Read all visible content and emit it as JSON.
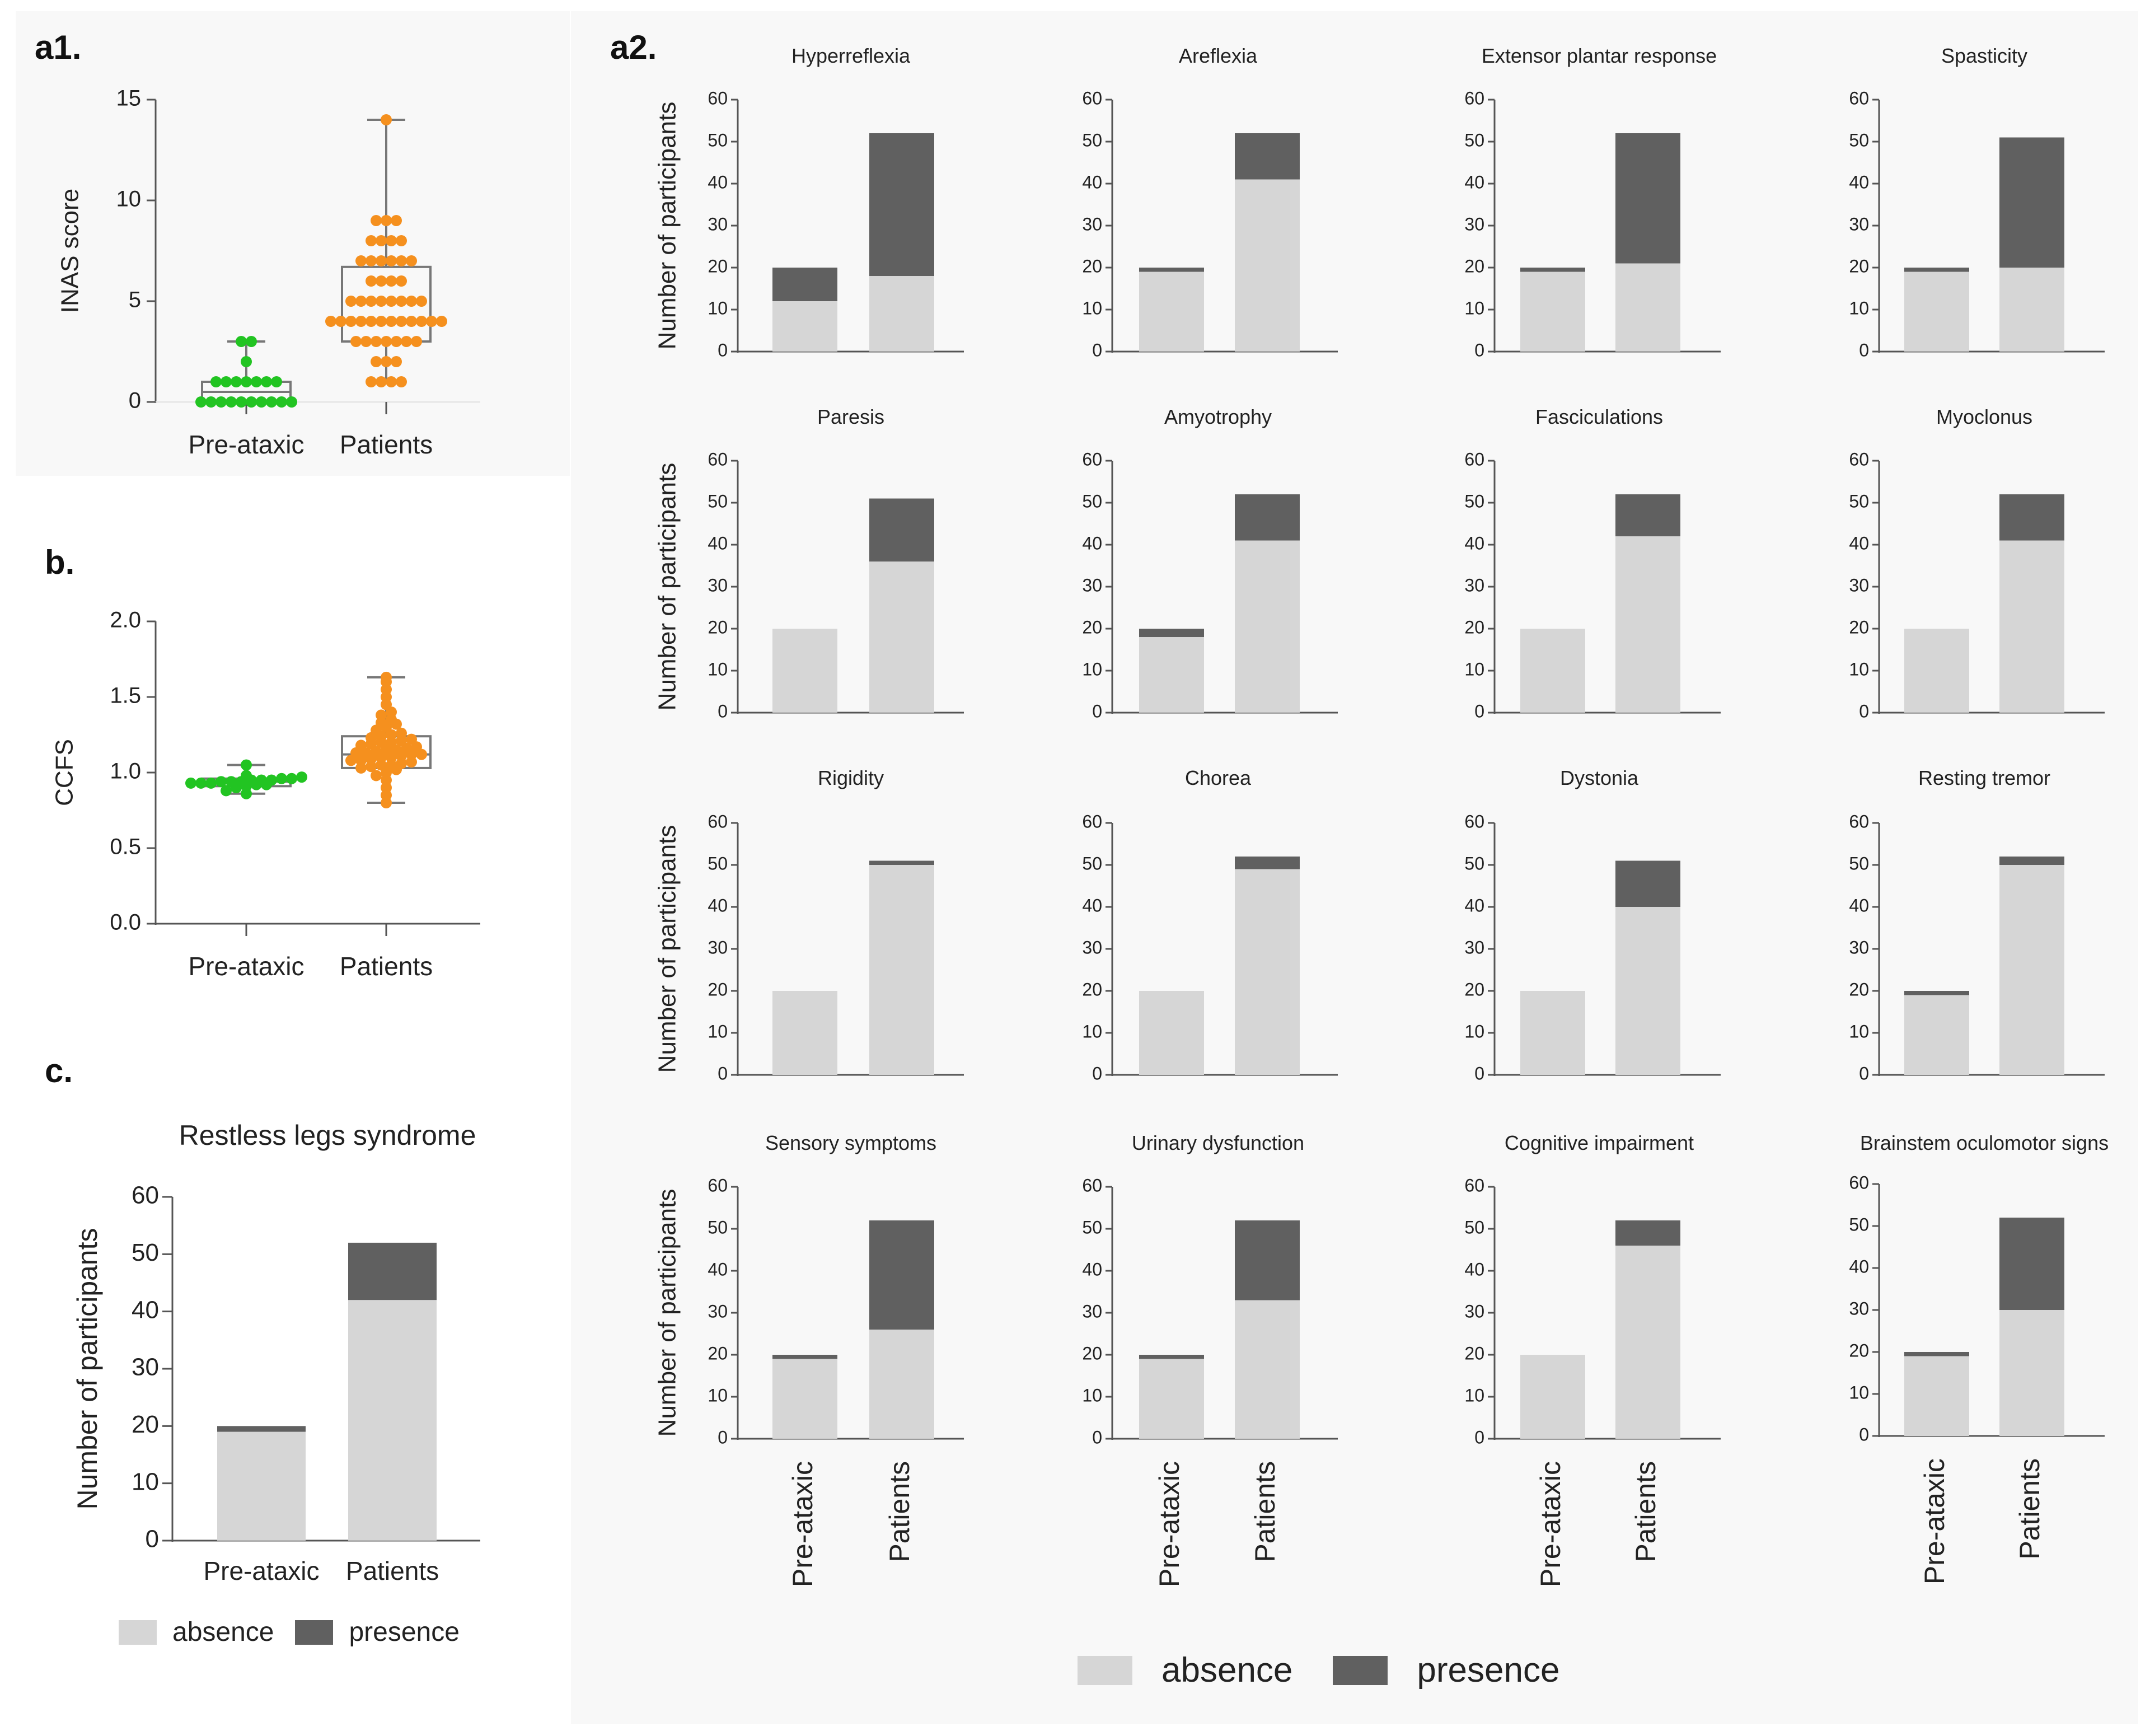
{
  "colors": {
    "absence": "#d6d6d6",
    "presence": "#606060",
    "pre_ataxic_points": "#22c422",
    "patients_points": "#f5901e",
    "axis": "#555555",
    "panel_bg": "#f8f8f8"
  },
  "panels": {
    "a1": "a1.",
    "a2": "a2.",
    "b": "b.",
    "c": "c."
  },
  "legend": {
    "absence": "absence",
    "presence": "presence"
  },
  "chart_data": [
    {
      "id": "a1",
      "type": "scatter",
      "subtype": "box-and-dots",
      "title": "",
      "xlabel": "",
      "ylabel": "INAS score",
      "ylim": [
        0,
        15
      ],
      "yticks": [
        0,
        5,
        10,
        15
      ],
      "yticklabels": [
        "0",
        "5",
        "10",
        "15"
      ],
      "categories": [
        "Pre-ataxic",
        "Patients"
      ],
      "groups": [
        {
          "name": "Pre-ataxic",
          "box": {
            "min": 0,
            "q1": 0,
            "median": 0.5,
            "q3": 1,
            "max": 3
          },
          "points": [
            0,
            0,
            0,
            0,
            0,
            0,
            0,
            0,
            0,
            0,
            1,
            1,
            1,
            1,
            1,
            1,
            1,
            2,
            3,
            3
          ]
        },
        {
          "name": "Patients",
          "box": {
            "min": 1,
            "q1": 3,
            "median": 4,
            "q3": 6.7,
            "max": 14
          },
          "points": [
            1,
            1,
            1,
            1,
            2,
            2,
            2,
            3,
            3,
            3,
            3,
            3,
            3,
            3,
            4,
            4,
            4,
            4,
            4,
            4,
            4,
            4,
            4,
            4,
            4,
            4,
            5,
            5,
            5,
            5,
            5,
            5,
            5,
            5,
            6,
            6,
            6,
            6,
            7,
            7,
            7,
            7,
            7,
            7,
            8,
            8,
            8,
            8,
            9,
            9,
            9,
            14
          ]
        }
      ]
    },
    {
      "id": "b",
      "type": "scatter",
      "subtype": "box-and-dots",
      "title": "",
      "xlabel": "",
      "ylabel": "CCFS",
      "ylim": [
        0,
        2
      ],
      "yticks": [
        0,
        0.5,
        1,
        1.5,
        2
      ],
      "yticklabels": [
        "0.0",
        "0.5",
        "1.0",
        "1.5",
        "2.0"
      ],
      "categories": [
        "Pre-ataxic",
        "Patients"
      ],
      "groups": [
        {
          "name": "Pre-ataxic",
          "box": {
            "min": 0.86,
            "q1": 0.91,
            "median": 0.94,
            "q3": 0.96,
            "max": 1.05
          },
          "points": [
            0.86,
            0.88,
            0.9,
            0.91,
            0.92,
            0.92,
            0.93,
            0.93,
            0.93,
            0.94,
            0.94,
            0.94,
            0.95,
            0.95,
            0.95,
            0.96,
            0.96,
            0.97,
            0.98,
            1.05
          ]
        },
        {
          "name": "Patients",
          "box": {
            "min": 0.8,
            "q1": 1.03,
            "median": 1.12,
            "q3": 1.24,
            "max": 1.63
          },
          "points": [
            0.8,
            0.85,
            0.9,
            0.95,
            0.98,
            1.0,
            1.02,
            1.03,
            1.04,
            1.05,
            1.05,
            1.06,
            1.07,
            1.08,
            1.08,
            1.09,
            1.1,
            1.1,
            1.11,
            1.12,
            1.12,
            1.13,
            1.13,
            1.14,
            1.15,
            1.15,
            1.16,
            1.17,
            1.18,
            1.19,
            1.2,
            1.2,
            1.21,
            1.22,
            1.23,
            1.24,
            1.25,
            1.26,
            1.28,
            1.3,
            1.32,
            1.33,
            1.35,
            1.38,
            1.4,
            1.45,
            1.5,
            1.55,
            1.6,
            1.63
          ]
        }
      ]
    },
    {
      "id": "c",
      "type": "bar",
      "stacked": true,
      "title": "Restless legs syndrome",
      "xlabel": "",
      "ylabel": "Number of participants",
      "ylim": [
        0,
        60
      ],
      "yticks": [
        0,
        10,
        20,
        30,
        40,
        50,
        60
      ],
      "categories": [
        "Pre-ataxic",
        "Patients"
      ],
      "series": [
        {
          "name": "absence",
          "values": [
            19,
            42
          ]
        },
        {
          "name": "presence",
          "values": [
            1,
            10
          ]
        }
      ]
    },
    {
      "id": "a2-1",
      "type": "bar",
      "stacked": true,
      "title": "Hyperreflexia",
      "ylabel": "Number of participants",
      "ylim": [
        0,
        60
      ],
      "yticks": [
        0,
        10,
        20,
        30,
        40,
        50,
        60
      ],
      "categories": [
        "Pre-ataxic",
        "Patients"
      ],
      "series": [
        {
          "name": "absence",
          "values": [
            12,
            18
          ]
        },
        {
          "name": "presence",
          "values": [
            8,
            34
          ]
        }
      ]
    },
    {
      "id": "a2-2",
      "type": "bar",
      "stacked": true,
      "title": "Areflexia",
      "ylabel": "",
      "ylim": [
        0,
        60
      ],
      "yticks": [
        0,
        10,
        20,
        30,
        40,
        50,
        60
      ],
      "categories": [
        "Pre-ataxic",
        "Patients"
      ],
      "series": [
        {
          "name": "absence",
          "values": [
            19,
            41
          ]
        },
        {
          "name": "presence",
          "values": [
            1,
            11
          ]
        }
      ]
    },
    {
      "id": "a2-3",
      "type": "bar",
      "stacked": true,
      "title": "Extensor plantar response",
      "ylabel": "",
      "ylim": [
        0,
        60
      ],
      "yticks": [
        0,
        10,
        20,
        30,
        40,
        50,
        60
      ],
      "categories": [
        "Pre-ataxic",
        "Patients"
      ],
      "series": [
        {
          "name": "absence",
          "values": [
            19,
            21
          ]
        },
        {
          "name": "presence",
          "values": [
            1,
            31
          ]
        }
      ]
    },
    {
      "id": "a2-4",
      "type": "bar",
      "stacked": true,
      "title": "Spasticity",
      "ylabel": "",
      "ylim": [
        0,
        60
      ],
      "yticks": [
        0,
        10,
        20,
        30,
        40,
        50,
        60
      ],
      "categories": [
        "Pre-ataxic",
        "Patients"
      ],
      "series": [
        {
          "name": "absence",
          "values": [
            19,
            20
          ]
        },
        {
          "name": "presence",
          "values": [
            1,
            31
          ]
        }
      ]
    },
    {
      "id": "a2-5",
      "type": "bar",
      "stacked": true,
      "title": "Paresis",
      "ylabel": "Number of participants",
      "ylim": [
        0,
        60
      ],
      "yticks": [
        0,
        10,
        20,
        30,
        40,
        50,
        60
      ],
      "categories": [
        "Pre-ataxic",
        "Patients"
      ],
      "series": [
        {
          "name": "absence",
          "values": [
            20,
            36
          ]
        },
        {
          "name": "presence",
          "values": [
            0,
            15
          ]
        }
      ]
    },
    {
      "id": "a2-6",
      "type": "bar",
      "stacked": true,
      "title": "Amyotrophy",
      "ylabel": "",
      "ylim": [
        0,
        60
      ],
      "yticks": [
        0,
        10,
        20,
        30,
        40,
        50,
        60
      ],
      "categories": [
        "Pre-ataxic",
        "Patients"
      ],
      "series": [
        {
          "name": "absence",
          "values": [
            18,
            41
          ]
        },
        {
          "name": "presence",
          "values": [
            2,
            11
          ]
        }
      ]
    },
    {
      "id": "a2-7",
      "type": "bar",
      "stacked": true,
      "title": "Fasciculations",
      "ylabel": "",
      "ylim": [
        0,
        60
      ],
      "yticks": [
        0,
        10,
        20,
        30,
        40,
        50,
        60
      ],
      "categories": [
        "Pre-ataxic",
        "Patients"
      ],
      "series": [
        {
          "name": "absence",
          "values": [
            20,
            42
          ]
        },
        {
          "name": "presence",
          "values": [
            0,
            10
          ]
        }
      ]
    },
    {
      "id": "a2-8",
      "type": "bar",
      "stacked": true,
      "title": "Myoclonus",
      "ylabel": "",
      "ylim": [
        0,
        60
      ],
      "yticks": [
        0,
        10,
        20,
        30,
        40,
        50,
        60
      ],
      "categories": [
        "Pre-ataxic",
        "Patients"
      ],
      "series": [
        {
          "name": "absence",
          "values": [
            20,
            41
          ]
        },
        {
          "name": "presence",
          "values": [
            0,
            11
          ]
        }
      ]
    },
    {
      "id": "a2-9",
      "type": "bar",
      "stacked": true,
      "title": "Rigidity",
      "ylabel": "Number of participants",
      "ylim": [
        0,
        60
      ],
      "yticks": [
        0,
        10,
        20,
        30,
        40,
        50,
        60
      ],
      "categories": [
        "Pre-ataxic",
        "Patients"
      ],
      "series": [
        {
          "name": "absence",
          "values": [
            20,
            50
          ]
        },
        {
          "name": "presence",
          "values": [
            0,
            1
          ]
        }
      ]
    },
    {
      "id": "a2-10",
      "type": "bar",
      "stacked": true,
      "title": "Chorea",
      "ylabel": "",
      "ylim": [
        0,
        60
      ],
      "yticks": [
        0,
        10,
        20,
        30,
        40,
        50,
        60
      ],
      "categories": [
        "Pre-ataxic",
        "Patients"
      ],
      "series": [
        {
          "name": "absence",
          "values": [
            20,
            49
          ]
        },
        {
          "name": "presence",
          "values": [
            0,
            3
          ]
        }
      ]
    },
    {
      "id": "a2-11",
      "type": "bar",
      "stacked": true,
      "title": "Dystonia",
      "ylabel": "",
      "ylim": [
        0,
        60
      ],
      "yticks": [
        0,
        10,
        20,
        30,
        40,
        50,
        60
      ],
      "categories": [
        "Pre-ataxic",
        "Patients"
      ],
      "series": [
        {
          "name": "absence",
          "values": [
            20,
            40
          ]
        },
        {
          "name": "presence",
          "values": [
            0,
            11
          ]
        }
      ]
    },
    {
      "id": "a2-12",
      "type": "bar",
      "stacked": true,
      "title": "Resting tremor",
      "ylabel": "",
      "ylim": [
        0,
        60
      ],
      "yticks": [
        0,
        10,
        20,
        30,
        40,
        50,
        60
      ],
      "categories": [
        "Pre-ataxic",
        "Patients"
      ],
      "series": [
        {
          "name": "absence",
          "values": [
            19,
            50
          ]
        },
        {
          "name": "presence",
          "values": [
            1,
            2
          ]
        }
      ]
    },
    {
      "id": "a2-13",
      "type": "bar",
      "stacked": true,
      "title": "Sensory symptoms",
      "ylabel": "Number of participants",
      "ylim": [
        0,
        60
      ],
      "yticks": [
        0,
        10,
        20,
        30,
        40,
        50,
        60
      ],
      "categories": [
        "Pre-ataxic",
        "Patients"
      ],
      "series": [
        {
          "name": "absence",
          "values": [
            19,
            26
          ]
        },
        {
          "name": "presence",
          "values": [
            1,
            26
          ]
        }
      ]
    },
    {
      "id": "a2-14",
      "type": "bar",
      "stacked": true,
      "title": "Urinary dysfunction",
      "ylabel": "",
      "ylim": [
        0,
        60
      ],
      "yticks": [
        0,
        10,
        20,
        30,
        40,
        50,
        60
      ],
      "categories": [
        "Pre-ataxic",
        "Patients"
      ],
      "series": [
        {
          "name": "absence",
          "values": [
            19,
            33
          ]
        },
        {
          "name": "presence",
          "values": [
            1,
            19
          ]
        }
      ]
    },
    {
      "id": "a2-15",
      "type": "bar",
      "stacked": true,
      "title": "Cognitive impairment",
      "ylabel": "",
      "ylim": [
        0,
        60
      ],
      "yticks": [
        0,
        10,
        20,
        30,
        40,
        50,
        60
      ],
      "categories": [
        "Pre-ataxic",
        "Patients"
      ],
      "series": [
        {
          "name": "absence",
          "values": [
            20,
            46
          ]
        },
        {
          "name": "presence",
          "values": [
            0,
            6
          ]
        }
      ]
    },
    {
      "id": "a2-16",
      "type": "bar",
      "stacked": true,
      "title": "Brainstem oculomotor signs",
      "ylabel": "",
      "ylim": [
        0,
        60
      ],
      "yticks": [
        0,
        10,
        20,
        30,
        40,
        50,
        60
      ],
      "categories": [
        "Pre-ataxic",
        "Patients"
      ],
      "series": [
        {
          "name": "absence",
          "values": [
            19,
            30
          ]
        },
        {
          "name": "presence",
          "values": [
            1,
            22
          ]
        }
      ]
    }
  ]
}
